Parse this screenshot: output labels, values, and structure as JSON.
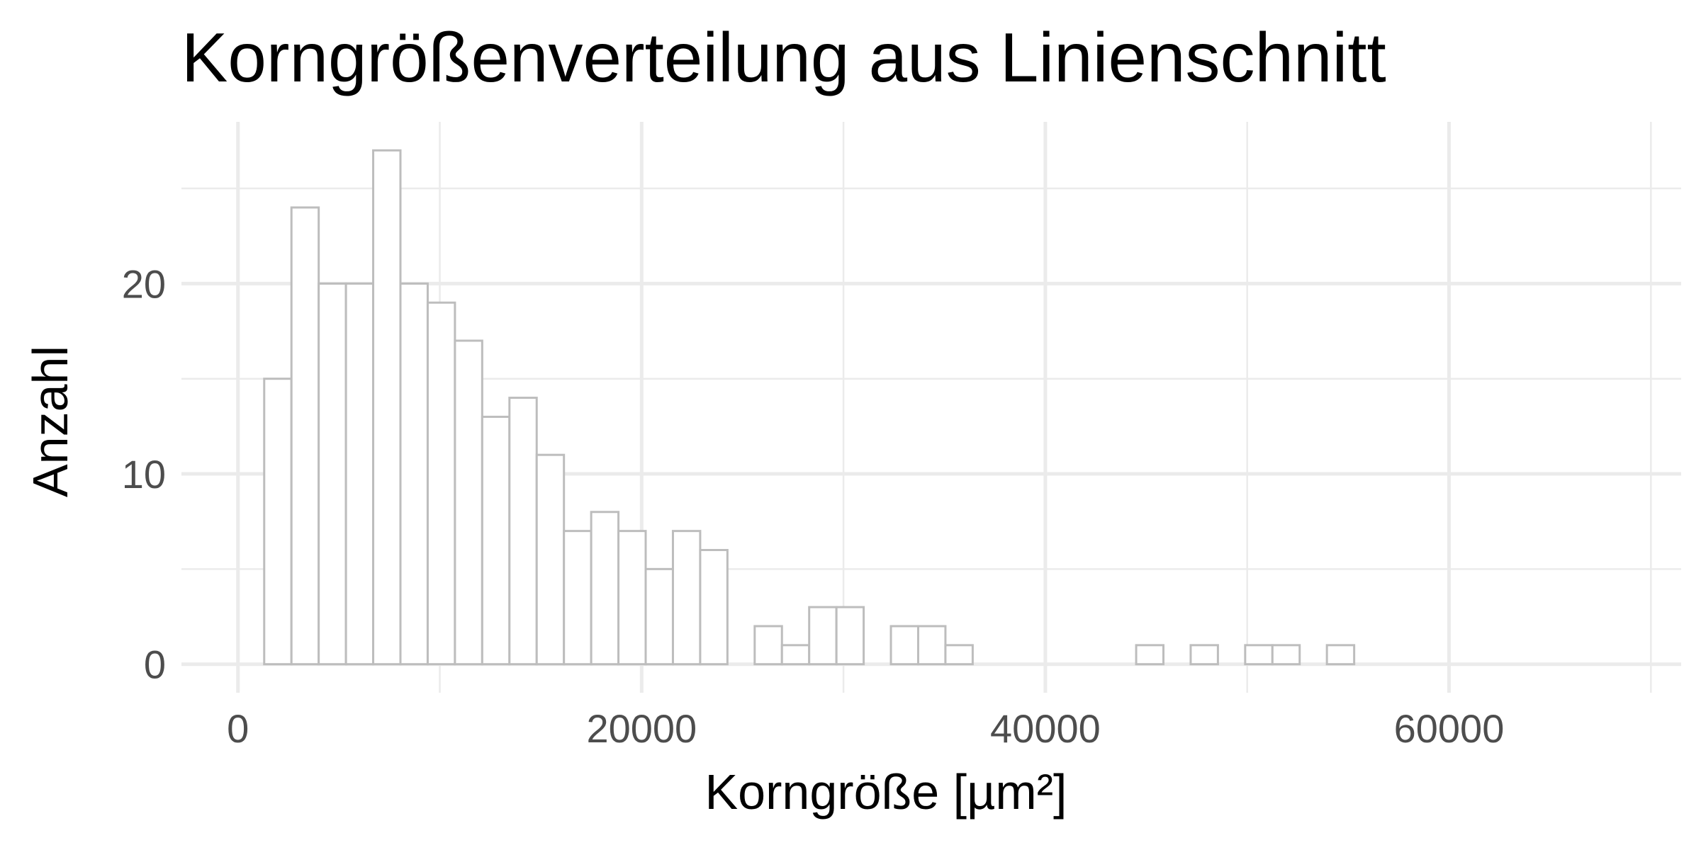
{
  "chart_data": {
    "type": "bar",
    "title": "Korngrößenverteilung aus Linienschnitt",
    "xlabel": "Korngröße [µm²]",
    "ylabel": "Anzahl",
    "xlim": [
      -2800,
      71500
    ],
    "ylim": [
      -1.5,
      28.5
    ],
    "x_ticks": [
      0,
      20000,
      40000,
      60000
    ],
    "x_tick_labels": [
      "0",
      "20000",
      "40000",
      "60000"
    ],
    "y_ticks": [
      0,
      10,
      20
    ],
    "y_tick_labels": [
      "0",
      "10",
      "20"
    ],
    "grid": true,
    "bins": {
      "start": 1300,
      "width": 1350,
      "counts": [
        15,
        24,
        20,
        20,
        27,
        20,
        19,
        17,
        13,
        14,
        11,
        7,
        8,
        7,
        5,
        7,
        6,
        0,
        2,
        1,
        3,
        3,
        0,
        2,
        2,
        1,
        0,
        0,
        0,
        0,
        0,
        0,
        1,
        0,
        1,
        0,
        1,
        1,
        0,
        1,
        0,
        0,
        0,
        0,
        0,
        0,
        0,
        0,
        0,
        0
      ]
    },
    "colors": {
      "bar_fill": "#ffffff",
      "bar_stroke": "#bdbdbd",
      "grid": "#ebebeb",
      "tick_text": "#4d4d4d",
      "text": "#000000"
    }
  }
}
